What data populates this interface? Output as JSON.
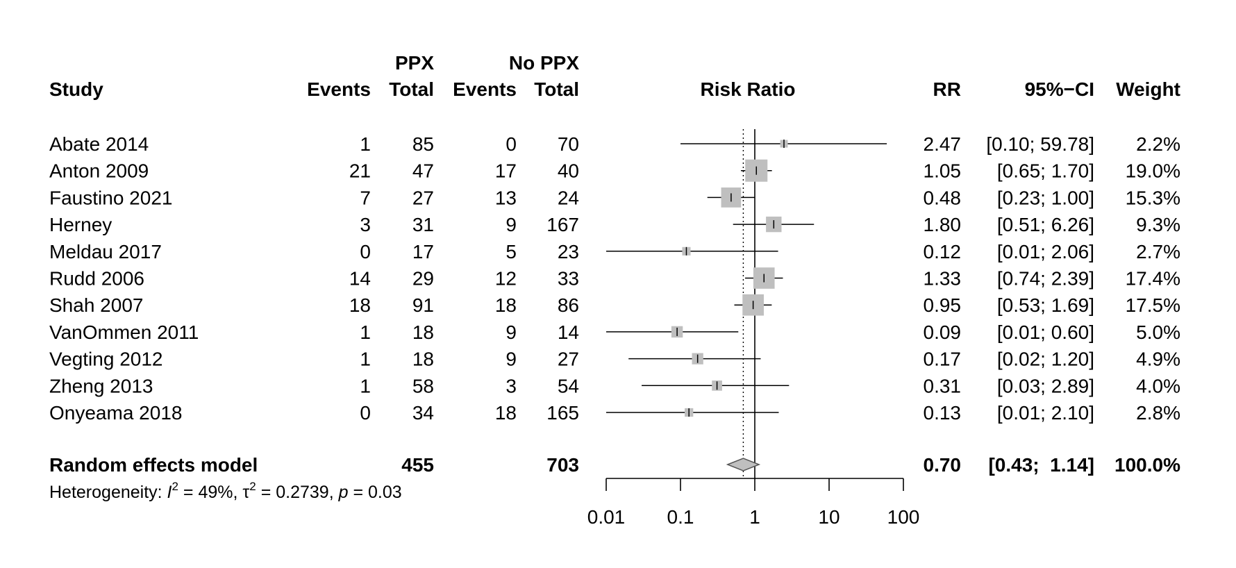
{
  "chart_data": {
    "type": "forest",
    "header": {
      "study": "Study",
      "group1": "PPX",
      "group2": "No PPX",
      "events": "Events",
      "total": "Total",
      "plot_title": "Risk Ratio",
      "rr": "RR",
      "ci": "95%−CI",
      "weight": "Weight"
    },
    "studies": [
      {
        "study": "Abate 2014",
        "e1": "1",
        "n1": "85",
        "e2": "0",
        "n2": "70",
        "rr": 2.47,
        "lo": 0.1,
        "hi": 59.78,
        "rr_text": "2.47",
        "ci_text": "[0.10; 59.78]",
        "weight": 2.2,
        "weight_text": "2.2%"
      },
      {
        "study": "Anton 2009",
        "e1": "21",
        "n1": "47",
        "e2": "17",
        "n2": "40",
        "rr": 1.05,
        "lo": 0.65,
        "hi": 1.7,
        "rr_text": "1.05",
        "ci_text": "[0.65;  1.70]",
        "weight": 19.0,
        "weight_text": "19.0%"
      },
      {
        "study": "Faustino 2021",
        "e1": "7",
        "n1": "27",
        "e2": "13",
        "n2": "24",
        "rr": 0.48,
        "lo": 0.23,
        "hi": 1.0,
        "rr_text": "0.48",
        "ci_text": "[0.23;  1.00]",
        "weight": 15.3,
        "weight_text": "15.3%"
      },
      {
        "study": "Herney",
        "e1": "3",
        "n1": "31",
        "e2": "9",
        "n2": "167",
        "rr": 1.8,
        "lo": 0.51,
        "hi": 6.26,
        "rr_text": "1.80",
        "ci_text": "[0.51;  6.26]",
        "weight": 9.3,
        "weight_text": "9.3%"
      },
      {
        "study": "Meldau 2017",
        "e1": "0",
        "n1": "17",
        "e2": "5",
        "n2": "23",
        "rr": 0.12,
        "lo": 0.01,
        "hi": 2.06,
        "rr_text": "0.12",
        "ci_text": "[0.01;  2.06]",
        "weight": 2.7,
        "weight_text": "2.7%"
      },
      {
        "study": "Rudd 2006",
        "e1": "14",
        "n1": "29",
        "e2": "12",
        "n2": "33",
        "rr": 1.33,
        "lo": 0.74,
        "hi": 2.39,
        "rr_text": "1.33",
        "ci_text": "[0.74;  2.39]",
        "weight": 17.4,
        "weight_text": "17.4%"
      },
      {
        "study": "Shah 2007",
        "e1": "18",
        "n1": "91",
        "e2": "18",
        "n2": "86",
        "rr": 0.95,
        "lo": 0.53,
        "hi": 1.69,
        "rr_text": "0.95",
        "ci_text": "[0.53;  1.69]",
        "weight": 17.5,
        "weight_text": "17.5%"
      },
      {
        "study": "VanOmmen 2011",
        "e1": "1",
        "n1": "18",
        "e2": "9",
        "n2": "14",
        "rr": 0.09,
        "lo": 0.01,
        "hi": 0.6,
        "rr_text": "0.09",
        "ci_text": "[0.01;  0.60]",
        "weight": 5.0,
        "weight_text": "5.0%"
      },
      {
        "study": "Vegting 2012",
        "e1": "1",
        "n1": "18",
        "e2": "9",
        "n2": "27",
        "rr": 0.17,
        "lo": 0.02,
        "hi": 1.2,
        "rr_text": "0.17",
        "ci_text": "[0.02;  1.20]",
        "weight": 4.9,
        "weight_text": "4.9%"
      },
      {
        "study": "Zheng 2013",
        "e1": "1",
        "n1": "58",
        "e2": "3",
        "n2": "54",
        "rr": 0.31,
        "lo": 0.03,
        "hi": 2.89,
        "rr_text": "0.31",
        "ci_text": "[0.03;  2.89]",
        "weight": 4.0,
        "weight_text": "4.0%"
      },
      {
        "study": "Onyeama 2018",
        "e1": "0",
        "n1": "34",
        "e2": "18",
        "n2": "165",
        "rr": 0.13,
        "lo": 0.01,
        "hi": 2.1,
        "rr_text": "0.13",
        "ci_text": "[0.01;  2.10]",
        "weight": 2.8,
        "weight_text": "2.8%"
      }
    ],
    "pooled": {
      "label": "Random effects model",
      "n1": "455",
      "n2": "703",
      "rr": 0.7,
      "lo": 0.43,
      "hi": 1.14,
      "rr_text": "0.70",
      "ci_text": "[0.43;  1.14]",
      "weight_text": "100.0%"
    },
    "heterogeneity": {
      "prefix": "Heterogeneity: ",
      "i2_symbol": "I",
      "sup": "2",
      "i2_value": " = 49%, ",
      "tau_symbol": "τ",
      "tau_value": " = 0.2739, ",
      "p_symbol": "p",
      "p_value": " = 0.03"
    },
    "x_axis": {
      "scale": "log",
      "ticks": [
        0.01,
        0.1,
        1,
        10,
        100
      ],
      "tick_labels": [
        "0.01",
        "0.1",
        "1",
        "10",
        "100"
      ],
      "null_line": 1,
      "pooled_dotted_line": 0.7
    },
    "colors": {
      "square": "#bfbfbf",
      "diamond": "#bfbfbf",
      "line": "#000000"
    }
  }
}
